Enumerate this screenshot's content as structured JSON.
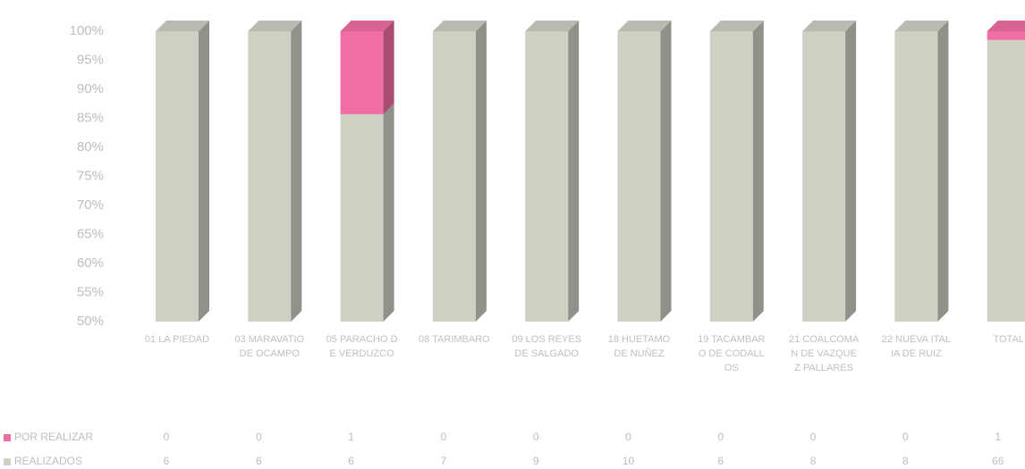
{
  "chart_data": {
    "type": "bar",
    "stacked_percent": true,
    "categories": [
      "01 LA PIEDAD",
      "03 MARAVATIO DE OCAMPO",
      "05 PARACHO DE VERDUZCO",
      "08 TARIMBARO",
      "09 LOS REYES DE SALGADO",
      "18 HUETAMO DE NUÑEZ",
      "19 TACAMBARO DE CODALLOS",
      "21 COALCOMAN DE VAZQUEZ PALLARES",
      "22 NUEVA ITALIA DE RUIZ",
      "TOTAL"
    ],
    "series": [
      {
        "name": "REALIZADOS",
        "color": "#cfcfc4",
        "values": [
          6,
          6,
          6,
          7,
          9,
          10,
          6,
          8,
          8,
          66
        ]
      },
      {
        "name": "POR REALIZAR",
        "color": "#f06ea2",
        "values": [
          0,
          0,
          1,
          0,
          0,
          0,
          0,
          0,
          0,
          1
        ]
      }
    ],
    "ylim": [
      50,
      100
    ],
    "yticks": [
      {
        "value": 50,
        "label": "50%"
      },
      {
        "value": 55,
        "label": "55%"
      },
      {
        "value": 60,
        "label": "60%"
      },
      {
        "value": 65,
        "label": "65%"
      },
      {
        "value": 70,
        "label": "70%"
      },
      {
        "value": 75,
        "label": "75%"
      },
      {
        "value": 80,
        "label": "80%"
      },
      {
        "value": 85,
        "label": "85%"
      },
      {
        "value": 90,
        "label": "90%"
      },
      {
        "value": 95,
        "label": "95%"
      },
      {
        "value": 100,
        "label": "100%"
      }
    ],
    "data_table": true
  }
}
